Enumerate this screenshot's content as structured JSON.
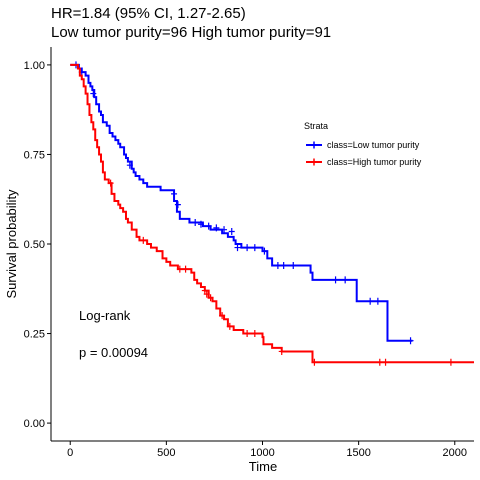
{
  "chart_data": {
    "type": "line",
    "title": "HR=1.84 (95% CI, 1.27-2.65)",
    "subtitle": "Low tumor purity=96 High tumor purity=91",
    "xlabel": "Time",
    "ylabel": "Survival probability",
    "xlim": [
      -100,
      2100
    ],
    "ylim": [
      -0.05,
      1.05
    ],
    "x_ticks": [
      0,
      500,
      1000,
      1500,
      2000
    ],
    "y_ticks": [
      0.0,
      0.25,
      0.5,
      0.75,
      1.0
    ],
    "x_tick_labels": [
      "0",
      "500",
      "1000",
      "1500",
      "2000"
    ],
    "y_tick_labels": [
      "0.00",
      "0.25",
      "0.50",
      "0.75",
      "1.00"
    ],
    "legend_title": "Strata",
    "legend_position": "right",
    "annotations": {
      "test": "Log-rank",
      "pvalue": "p = 0.00094"
    },
    "series": [
      {
        "name": "class=Low tumor purity",
        "color": "#0000ff",
        "steps": [
          [
            0,
            1.0
          ],
          [
            45,
            0.99
          ],
          [
            60,
            0.98
          ],
          [
            80,
            0.97
          ],
          [
            95,
            0.95
          ],
          [
            105,
            0.94
          ],
          [
            115,
            0.93
          ],
          [
            125,
            0.91
          ],
          [
            135,
            0.89
          ],
          [
            150,
            0.87
          ],
          [
            160,
            0.86
          ],
          [
            170,
            0.84
          ],
          [
            190,
            0.83
          ],
          [
            205,
            0.81
          ],
          [
            220,
            0.8
          ],
          [
            235,
            0.79
          ],
          [
            250,
            0.78
          ],
          [
            260,
            0.77
          ],
          [
            280,
            0.75
          ],
          [
            290,
            0.74
          ],
          [
            300,
            0.73
          ],
          [
            320,
            0.71
          ],
          [
            330,
            0.7
          ],
          [
            340,
            0.69
          ],
          [
            360,
            0.68
          ],
          [
            380,
            0.67
          ],
          [
            400,
            0.66
          ],
          [
            470,
            0.65
          ],
          [
            540,
            0.62
          ],
          [
            555,
            0.59
          ],
          [
            570,
            0.57
          ],
          [
            620,
            0.56
          ],
          [
            690,
            0.55
          ],
          [
            730,
            0.54
          ],
          [
            790,
            0.53
          ],
          [
            820,
            0.52
          ],
          [
            850,
            0.51
          ],
          [
            860,
            0.5
          ],
          [
            890,
            0.49
          ],
          [
            1000,
            0.48
          ],
          [
            1025,
            0.46
          ],
          [
            1050,
            0.44
          ],
          [
            1250,
            0.42
          ],
          [
            1260,
            0.4
          ],
          [
            1490,
            0.34
          ],
          [
            1650,
            0.23
          ],
          [
            1780,
            0.23
          ]
        ],
        "censors": [
          [
            30,
            1.0
          ],
          [
            60,
            0.98
          ],
          [
            120,
            0.92
          ],
          [
            310,
            0.72
          ],
          [
            540,
            0.64
          ],
          [
            560,
            0.61
          ],
          [
            650,
            0.56
          ],
          [
            680,
            0.555
          ],
          [
            720,
            0.55
          ],
          [
            760,
            0.545
          ],
          [
            800,
            0.54
          ],
          [
            840,
            0.535
          ],
          [
            870,
            0.49
          ],
          [
            920,
            0.49
          ],
          [
            960,
            0.49
          ],
          [
            1010,
            0.48
          ],
          [
            1080,
            0.44
          ],
          [
            1110,
            0.44
          ],
          [
            1160,
            0.44
          ],
          [
            1380,
            0.4
          ],
          [
            1430,
            0.4
          ],
          [
            1560,
            0.34
          ],
          [
            1600,
            0.34
          ],
          [
            1770,
            0.23
          ]
        ]
      },
      {
        "name": "class=High tumor purity",
        "color": "#ff0000",
        "steps": [
          [
            0,
            1.0
          ],
          [
            40,
            0.99
          ],
          [
            50,
            0.97
          ],
          [
            60,
            0.96
          ],
          [
            70,
            0.94
          ],
          [
            80,
            0.92
          ],
          [
            90,
            0.89
          ],
          [
            100,
            0.86
          ],
          [
            110,
            0.84
          ],
          [
            120,
            0.82
          ],
          [
            130,
            0.79
          ],
          [
            140,
            0.77
          ],
          [
            150,
            0.75
          ],
          [
            160,
            0.73
          ],
          [
            170,
            0.7
          ],
          [
            180,
            0.68
          ],
          [
            200,
            0.67
          ],
          [
            215,
            0.64
          ],
          [
            230,
            0.62
          ],
          [
            250,
            0.61
          ],
          [
            260,
            0.6
          ],
          [
            275,
            0.59
          ],
          [
            290,
            0.57
          ],
          [
            300,
            0.56
          ],
          [
            320,
            0.54
          ],
          [
            345,
            0.52
          ],
          [
            360,
            0.51
          ],
          [
            400,
            0.5
          ],
          [
            420,
            0.49
          ],
          [
            450,
            0.48
          ],
          [
            480,
            0.46
          ],
          [
            500,
            0.45
          ],
          [
            520,
            0.44
          ],
          [
            560,
            0.43
          ],
          [
            630,
            0.42
          ],
          [
            645,
            0.4
          ],
          [
            660,
            0.39
          ],
          [
            680,
            0.38
          ],
          [
            700,
            0.37
          ],
          [
            720,
            0.35
          ],
          [
            740,
            0.34
          ],
          [
            760,
            0.32
          ],
          [
            780,
            0.3
          ],
          [
            800,
            0.29
          ],
          [
            820,
            0.27
          ],
          [
            850,
            0.26
          ],
          [
            900,
            0.25
          ],
          [
            1000,
            0.24
          ],
          [
            1005,
            0.22
          ],
          [
            1050,
            0.21
          ],
          [
            1100,
            0.2
          ],
          [
            1260,
            0.17
          ],
          [
            2100,
            0.17
          ]
        ],
        "censors": [
          [
            210,
            0.67
          ],
          [
            380,
            0.51
          ],
          [
            570,
            0.43
          ],
          [
            600,
            0.43
          ],
          [
            700,
            0.37
          ],
          [
            710,
            0.36
          ],
          [
            730,
            0.35
          ],
          [
            790,
            0.3
          ],
          [
            830,
            0.27
          ],
          [
            920,
            0.25
          ],
          [
            960,
            0.25
          ],
          [
            1100,
            0.2
          ],
          [
            1270,
            0.17
          ],
          [
            1610,
            0.17
          ],
          [
            1640,
            0.17
          ],
          [
            1980,
            0.17
          ]
        ]
      }
    ]
  }
}
